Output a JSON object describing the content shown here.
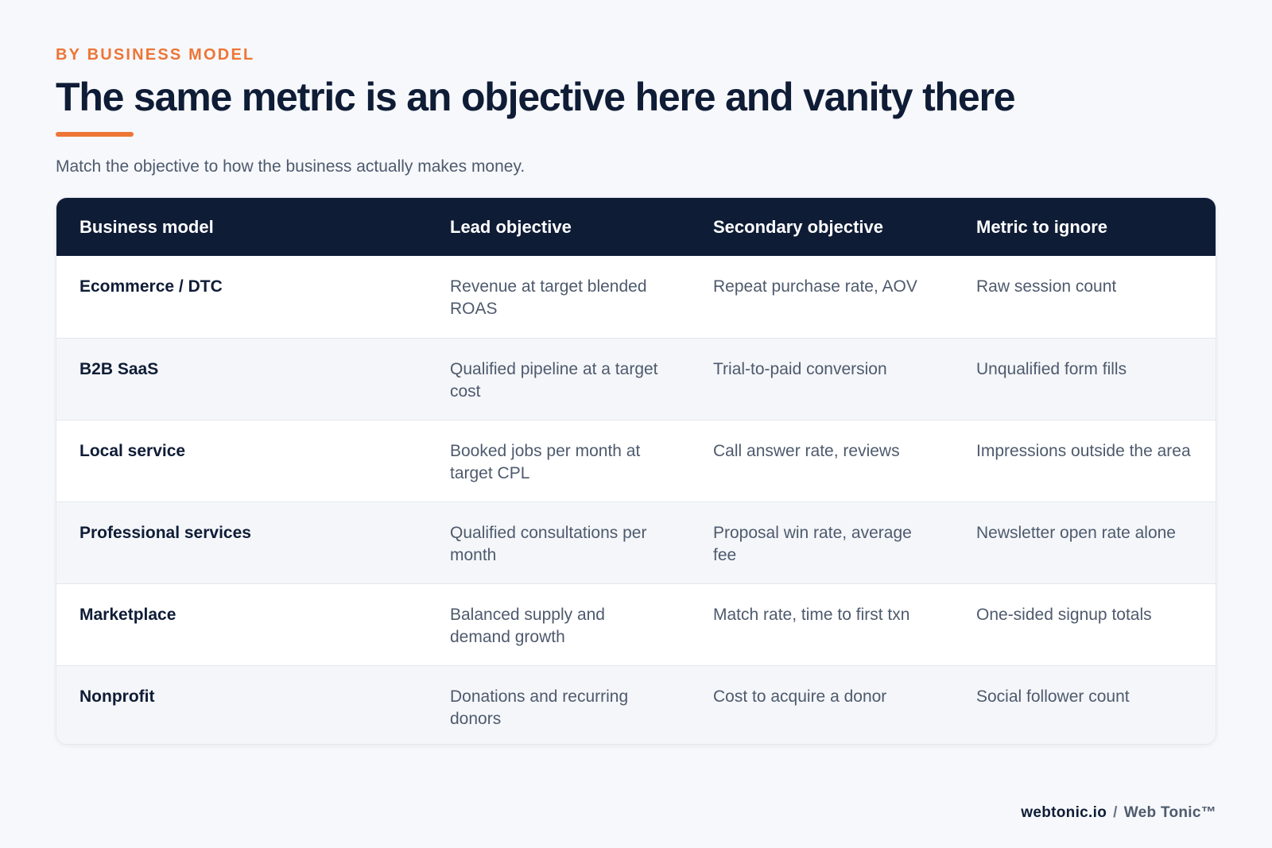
{
  "header": {
    "eyebrow": "BY BUSINESS MODEL",
    "title": "The same metric is an objective here and vanity there",
    "subtitle": "Match the objective to how the business actually makes money."
  },
  "colors": {
    "accent": "#ee7536",
    "navy": "#0f1c36",
    "muted_text": "#4e5a6d",
    "background": "#f6f8fb"
  },
  "table": {
    "columns": [
      "Business model",
      "Lead objective",
      "Secondary objective",
      "Metric to ignore"
    ],
    "rows": [
      {
        "model": "Ecommerce / DTC",
        "lead": "Revenue at target blended ROAS",
        "secondary": "Repeat purchase rate, AOV",
        "ignore": "Raw session count"
      },
      {
        "model": "B2B SaaS",
        "lead": "Qualified pipeline at a target cost",
        "secondary": "Trial-to-paid conversion",
        "ignore": "Unqualified form fills"
      },
      {
        "model": "Local service",
        "lead": "Booked jobs per month at target CPL",
        "secondary": "Call answer rate, reviews",
        "ignore": "Impressions outside the area"
      },
      {
        "model": "Professional services",
        "lead": "Qualified consultations per month",
        "secondary": "Proposal win rate, average fee",
        "ignore": "Newsletter open rate alone"
      },
      {
        "model": "Marketplace",
        "lead": "Balanced supply and demand growth",
        "secondary": "Match rate, time to first txn",
        "ignore": "One-sided signup totals"
      },
      {
        "model": "Nonprofit",
        "lead": "Donations and recurring donors",
        "secondary": "Cost to acquire a donor",
        "ignore": "Social follower count"
      }
    ]
  },
  "footer": {
    "domain": "webtonic.io",
    "separator": "/",
    "brand": "Web Tonic™"
  }
}
